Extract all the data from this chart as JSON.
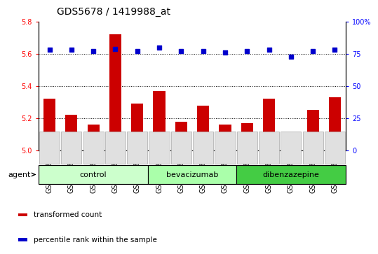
{
  "title": "GDS5678 / 1419988_at",
  "samples": [
    "GSM967852",
    "GSM967853",
    "GSM967854",
    "GSM967855",
    "GSM967856",
    "GSM967862",
    "GSM967863",
    "GSM967864",
    "GSM967865",
    "GSM967857",
    "GSM967858",
    "GSM967859",
    "GSM967860",
    "GSM967861"
  ],
  "bar_values": [
    5.32,
    5.22,
    5.16,
    5.72,
    5.29,
    5.37,
    5.18,
    5.28,
    5.16,
    5.17,
    5.32,
    5.06,
    5.25,
    5.33
  ],
  "dot_values": [
    78,
    78,
    77,
    79,
    77,
    80,
    77,
    77,
    76,
    77,
    78,
    73,
    77,
    78
  ],
  "bar_color": "#cc0000",
  "dot_color": "#0000cc",
  "ylim_left": [
    5.0,
    5.8
  ],
  "ylim_right": [
    0,
    100
  ],
  "yticks_left": [
    5.0,
    5.2,
    5.4,
    5.6,
    5.8
  ],
  "yticks_right": [
    0,
    25,
    50,
    75,
    100
  ],
  "ytick_labels_right": [
    "0",
    "25",
    "50",
    "75",
    "100%"
  ],
  "hlines": [
    5.2,
    5.4,
    5.6
  ],
  "groups": [
    {
      "label": "control",
      "start": 0,
      "end": 5,
      "color": "#ccffcc"
    },
    {
      "label": "bevacizumab",
      "start": 5,
      "end": 9,
      "color": "#aaffaa"
    },
    {
      "label": "dibenzazepine",
      "start": 9,
      "end": 14,
      "color": "#44cc44"
    }
  ],
  "agent_label": "agent",
  "legend_bar_label": "transformed count",
  "legend_dot_label": "percentile rank within the sample",
  "title_fontsize": 10,
  "tick_fontsize": 7,
  "group_fontsize": 8,
  "bar_bottom": 5.0,
  "bg_color": "#ffffff"
}
